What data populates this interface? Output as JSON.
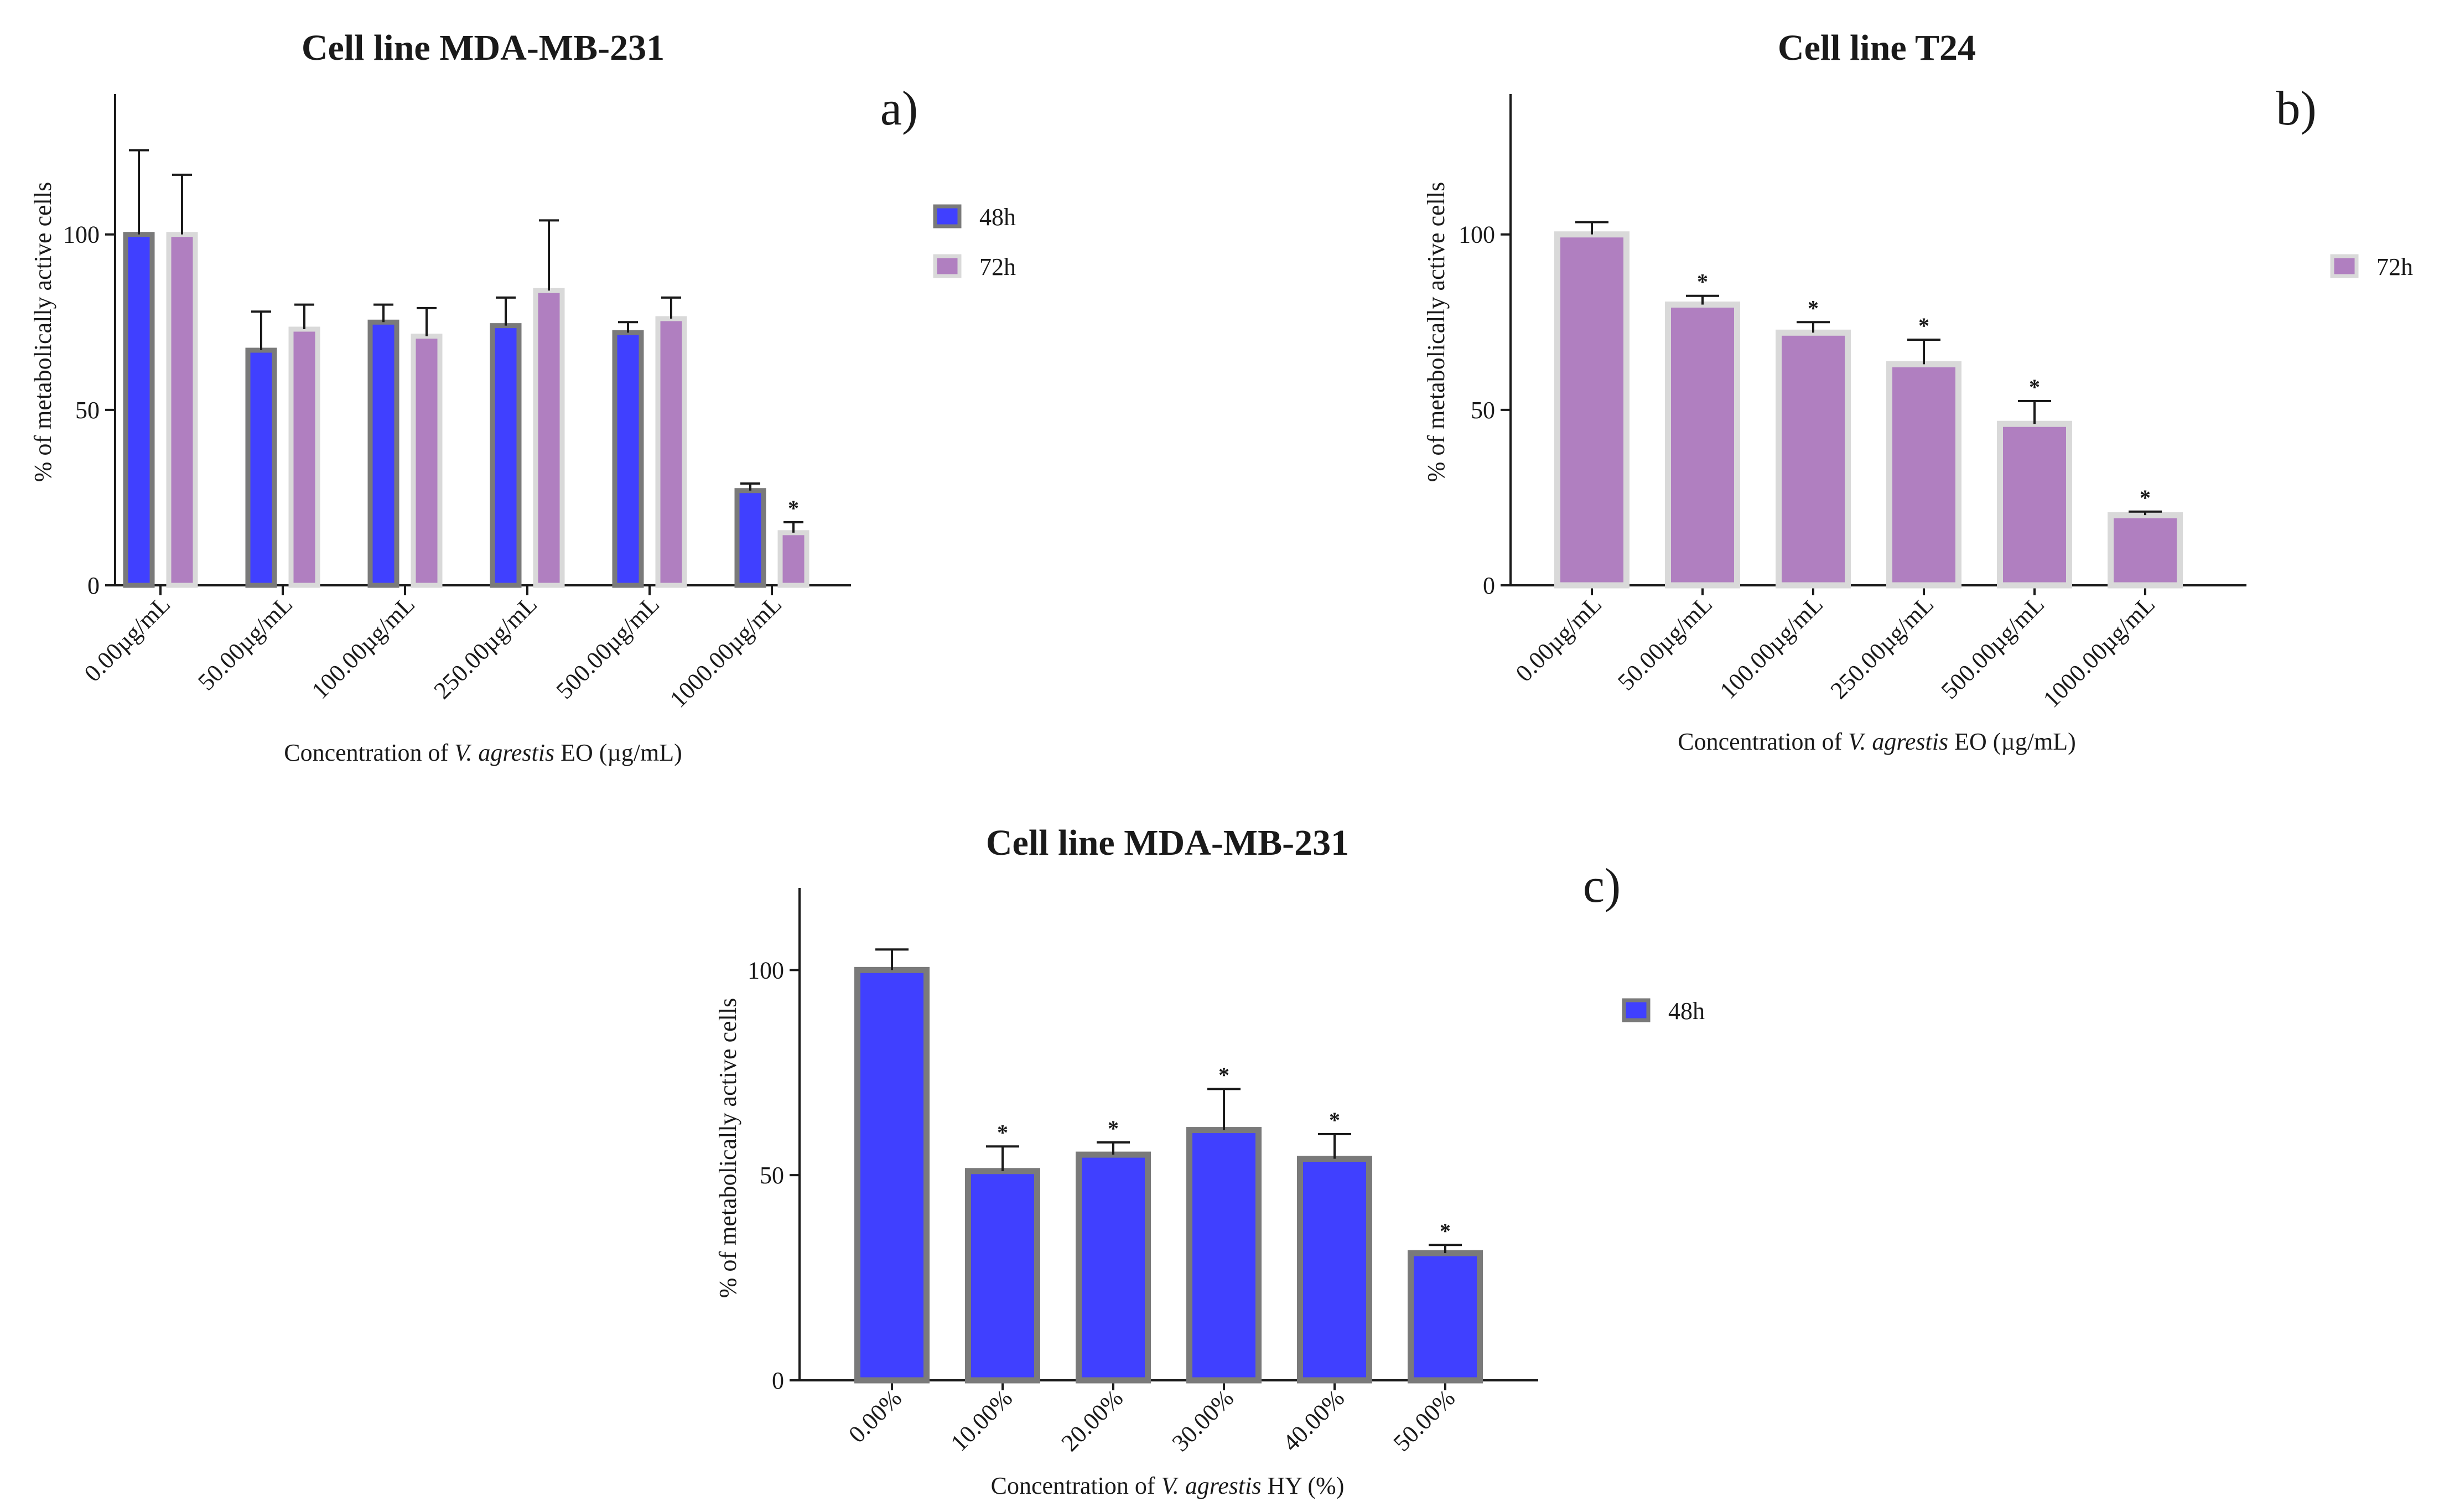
{
  "colors": {
    "h48": "#4040ff",
    "h72": "#b07fc0",
    "h48_border": "#7a7a7a",
    "h72_border": "#d9d9d9",
    "axis": "#1a1a1a"
  },
  "chart_data": [
    {
      "id": "a",
      "type": "bar",
      "title": "Cell line MDA-MB-231",
      "panel_label": "a)",
      "ylabel": "% of metabolically active cells",
      "xlabel_prefix": "Concentration of ",
      "xlabel_italic": "V. agrestis",
      "xlabel_suffix": " EO (µg/mL)",
      "ylim": [
        0,
        140
      ],
      "yticks": [
        0,
        50,
        100
      ],
      "categories": [
        "0.00µg/mL",
        "50.00µg/mL",
        "100.00µg/mL",
        "250.00µg/mL",
        "500.00µg/mL",
        "1000.00µg/mL"
      ],
      "series": [
        {
          "name": "48h",
          "color_key": "h48",
          "values": [
            100,
            67,
            75,
            74,
            72,
            27
          ],
          "errors": [
            24,
            11,
            5,
            8,
            3,
            2
          ],
          "significant": [
            false,
            false,
            false,
            false,
            false,
            false
          ]
        },
        {
          "name": "72h",
          "color_key": "h72",
          "values": [
            100,
            73,
            71,
            84,
            76,
            15
          ],
          "errors": [
            17,
            7,
            8,
            20,
            6,
            3
          ],
          "significant": [
            false,
            false,
            false,
            false,
            false,
            true
          ]
        }
      ],
      "legend": [
        "48h",
        "72h"
      ]
    },
    {
      "id": "b",
      "type": "bar",
      "title": "Cell line T24",
      "panel_label": "b)",
      "ylabel": "% of metabolically active cells",
      "xlabel_prefix": "Concentration of ",
      "xlabel_italic": "V. agrestis",
      "xlabel_suffix": " EO (µg/mL)",
      "ylim": [
        0,
        140
      ],
      "yticks": [
        0,
        50,
        100
      ],
      "categories": [
        "0.00µg/mL",
        "50.00µg/mL",
        "100.00µg/mL",
        "250.00µg/mL",
        "500.00µg/mL",
        "1000.00µg/mL"
      ],
      "series": [
        {
          "name": "72h",
          "color_key": "h72",
          "values": [
            100,
            80,
            72,
            63,
            46,
            20
          ],
          "errors": [
            3.5,
            2.5,
            3,
            7,
            6.5,
            1
          ],
          "significant": [
            false,
            true,
            true,
            true,
            true,
            true
          ]
        }
      ],
      "legend": [
        "72h"
      ]
    },
    {
      "id": "c",
      "type": "bar",
      "title": "Cell line MDA-MB-231",
      "panel_label": "c)",
      "ylabel": "% of metabolically active cells",
      "xlabel_prefix": "Concentration of ",
      "xlabel_italic": "V. agrestis",
      "xlabel_suffix": " HY (%)",
      "ylim": [
        0,
        120
      ],
      "yticks": [
        0,
        50,
        100
      ],
      "categories": [
        "0.00%",
        "10.00%",
        "20.00%",
        "30.00%",
        "40.00%",
        "50.00%"
      ],
      "series": [
        {
          "name": "48h",
          "color_key": "h48",
          "values": [
            100,
            51,
            55,
            61,
            54,
            31
          ],
          "errors": [
            5,
            6,
            3,
            10,
            6,
            2
          ],
          "significant": [
            false,
            true,
            true,
            true,
            true,
            true
          ]
        }
      ],
      "legend": [
        "48h"
      ]
    }
  ]
}
